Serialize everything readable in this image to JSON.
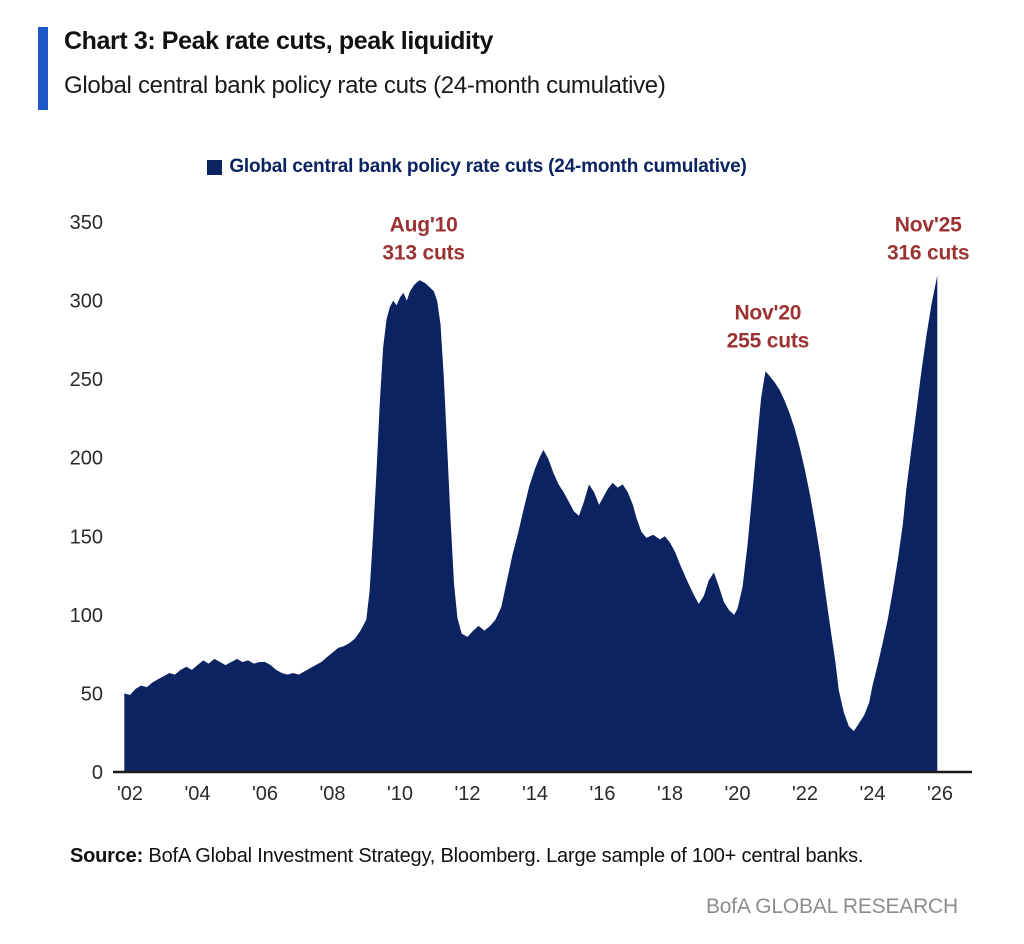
{
  "header": {
    "title": "Chart 3: Peak rate cuts, peak liquidity",
    "subtitle": "Global central bank policy rate cuts (24-month cumulative)"
  },
  "legend": {
    "label": "Global central bank policy rate cuts (24-month cumulative)"
  },
  "footer": {
    "source_label": "Source:",
    "source_text": " BofA Global Investment Strategy, Bloomberg. Large sample of 100+ central banks.",
    "brand": "BofA GLOBAL RESEARCH"
  },
  "colors": {
    "accent_blue": "#1d57c8",
    "area_navy": "#0c2362",
    "annotation_red": "#9b3333",
    "axis_black": "#1a1a1a",
    "brand_gray": "#8d8d8d"
  },
  "chart_data": {
    "type": "area",
    "title": "Chart 3: Peak rate cuts, peak liquidity",
    "subtitle": "Global central bank policy rate cuts (24-month cumulative)",
    "legend_entries": [
      "Global central bank policy rate cuts (24-month cumulative)"
    ],
    "xlabel": "",
    "ylabel": "",
    "xlim": [
      2001.7,
      2026.5
    ],
    "ylim": [
      0,
      350
    ],
    "grid": false,
    "legend_position": "top-center",
    "yticks": [
      0,
      50,
      100,
      150,
      200,
      250,
      300,
      350
    ],
    "xticks": [
      {
        "x": 2002,
        "label": "'02"
      },
      {
        "x": 2004,
        "label": "'04"
      },
      {
        "x": 2006,
        "label": "'06"
      },
      {
        "x": 2008,
        "label": "'08"
      },
      {
        "x": 2010,
        "label": "'10"
      },
      {
        "x": 2012,
        "label": "'12"
      },
      {
        "x": 2014,
        "label": "'14"
      },
      {
        "x": 2016,
        "label": "'16"
      },
      {
        "x": 2018,
        "label": "'18"
      },
      {
        "x": 2020,
        "label": "'20"
      },
      {
        "x": 2022,
        "label": "'22"
      },
      {
        "x": 2024,
        "label": "'24"
      },
      {
        "x": 2026,
        "label": "'26"
      }
    ],
    "annotations": [
      {
        "x": 2010.7,
        "y": 349,
        "lines": [
          "Aug'10",
          "313 cuts"
        ]
      },
      {
        "x": 2020.9,
        "y": 293,
        "lines": [
          "Nov'20",
          "255 cuts"
        ]
      },
      {
        "x": 2025.65,
        "y": 349,
        "lines": [
          "Nov'25",
          "316 cuts"
        ]
      }
    ],
    "series": [
      {
        "name": "Global central bank policy rate cuts (24-month cumulative)",
        "points": [
          [
            2001.83,
            50
          ],
          [
            2002.0,
            49
          ],
          [
            2002.17,
            53
          ],
          [
            2002.33,
            55
          ],
          [
            2002.5,
            54
          ],
          [
            2002.67,
            57
          ],
          [
            2002.83,
            59
          ],
          [
            2003.0,
            61
          ],
          [
            2003.17,
            63
          ],
          [
            2003.33,
            62
          ],
          [
            2003.5,
            65
          ],
          [
            2003.67,
            67
          ],
          [
            2003.83,
            65
          ],
          [
            2004.0,
            68
          ],
          [
            2004.17,
            71
          ],
          [
            2004.33,
            69
          ],
          [
            2004.5,
            72
          ],
          [
            2004.67,
            70
          ],
          [
            2004.83,
            68
          ],
          [
            2005.0,
            70
          ],
          [
            2005.17,
            72
          ],
          [
            2005.33,
            70
          ],
          [
            2005.5,
            71
          ],
          [
            2005.67,
            69
          ],
          [
            2005.83,
            70
          ],
          [
            2006.0,
            70
          ],
          [
            2006.17,
            68
          ],
          [
            2006.33,
            65
          ],
          [
            2006.5,
            63
          ],
          [
            2006.67,
            62
          ],
          [
            2006.83,
            63
          ],
          [
            2007.0,
            62
          ],
          [
            2007.17,
            64
          ],
          [
            2007.33,
            66
          ],
          [
            2007.5,
            68
          ],
          [
            2007.67,
            70
          ],
          [
            2007.83,
            73
          ],
          [
            2008.0,
            76
          ],
          [
            2008.17,
            79
          ],
          [
            2008.33,
            80
          ],
          [
            2008.5,
            82
          ],
          [
            2008.67,
            85
          ],
          [
            2008.83,
            90
          ],
          [
            2009.0,
            97
          ],
          [
            2009.1,
            115
          ],
          [
            2009.2,
            150
          ],
          [
            2009.3,
            190
          ],
          [
            2009.4,
            235
          ],
          [
            2009.5,
            270
          ],
          [
            2009.6,
            288
          ],
          [
            2009.7,
            296
          ],
          [
            2009.8,
            300
          ],
          [
            2009.9,
            297
          ],
          [
            2010.0,
            302
          ],
          [
            2010.1,
            305
          ],
          [
            2010.2,
            300
          ],
          [
            2010.3,
            306
          ],
          [
            2010.42,
            310
          ],
          [
            2010.58,
            313
          ],
          [
            2010.75,
            311
          ],
          [
            2010.9,
            308
          ],
          [
            2011.0,
            306
          ],
          [
            2011.1,
            300
          ],
          [
            2011.2,
            285
          ],
          [
            2011.3,
            250
          ],
          [
            2011.4,
            205
          ],
          [
            2011.5,
            160
          ],
          [
            2011.6,
            120
          ],
          [
            2011.7,
            98
          ],
          [
            2011.83,
            88
          ],
          [
            2012.0,
            86
          ],
          [
            2012.17,
            90
          ],
          [
            2012.33,
            93
          ],
          [
            2012.5,
            90
          ],
          [
            2012.67,
            93
          ],
          [
            2012.83,
            97
          ],
          [
            2013.0,
            105
          ],
          [
            2013.17,
            122
          ],
          [
            2013.33,
            138
          ],
          [
            2013.5,
            152
          ],
          [
            2013.67,
            168
          ],
          [
            2013.83,
            182
          ],
          [
            2014.0,
            193
          ],
          [
            2014.13,
            200
          ],
          [
            2014.25,
            205
          ],
          [
            2014.4,
            199
          ],
          [
            2014.55,
            190
          ],
          [
            2014.7,
            183
          ],
          [
            2014.85,
            178
          ],
          [
            2015.0,
            172
          ],
          [
            2015.15,
            166
          ],
          [
            2015.3,
            163
          ],
          [
            2015.45,
            172
          ],
          [
            2015.6,
            183
          ],
          [
            2015.75,
            178
          ],
          [
            2015.9,
            170
          ],
          [
            2016.0,
            174
          ],
          [
            2016.15,
            180
          ],
          [
            2016.3,
            184
          ],
          [
            2016.45,
            181
          ],
          [
            2016.6,
            183
          ],
          [
            2016.75,
            178
          ],
          [
            2016.9,
            170
          ],
          [
            2017.0,
            162
          ],
          [
            2017.15,
            153
          ],
          [
            2017.3,
            149
          ],
          [
            2017.5,
            151
          ],
          [
            2017.7,
            148
          ],
          [
            2017.85,
            150
          ],
          [
            2018.0,
            146
          ],
          [
            2018.15,
            140
          ],
          [
            2018.3,
            132
          ],
          [
            2018.5,
            122
          ],
          [
            2018.7,
            113
          ],
          [
            2018.85,
            107
          ],
          [
            2019.0,
            112
          ],
          [
            2019.15,
            122
          ],
          [
            2019.3,
            127
          ],
          [
            2019.45,
            118
          ],
          [
            2019.6,
            108
          ],
          [
            2019.75,
            103
          ],
          [
            2019.9,
            100
          ],
          [
            2020.0,
            104
          ],
          [
            2020.15,
            118
          ],
          [
            2020.3,
            145
          ],
          [
            2020.45,
            180
          ],
          [
            2020.6,
            215
          ],
          [
            2020.7,
            238
          ],
          [
            2020.83,
            255
          ],
          [
            2020.95,
            252
          ],
          [
            2021.1,
            248
          ],
          [
            2021.25,
            243
          ],
          [
            2021.4,
            236
          ],
          [
            2021.55,
            228
          ],
          [
            2021.7,
            218
          ],
          [
            2021.85,
            206
          ],
          [
            2022.0,
            192
          ],
          [
            2022.15,
            176
          ],
          [
            2022.3,
            158
          ],
          [
            2022.45,
            138
          ],
          [
            2022.6,
            115
          ],
          [
            2022.75,
            92
          ],
          [
            2022.9,
            70
          ],
          [
            2023.0,
            52
          ],
          [
            2023.15,
            38
          ],
          [
            2023.3,
            29
          ],
          [
            2023.45,
            26
          ],
          [
            2023.6,
            31
          ],
          [
            2023.75,
            36
          ],
          [
            2023.9,
            44
          ],
          [
            2024.0,
            55
          ],
          [
            2024.15,
            68
          ],
          [
            2024.3,
            82
          ],
          [
            2024.45,
            97
          ],
          [
            2024.6,
            115
          ],
          [
            2024.75,
            135
          ],
          [
            2024.9,
            158
          ],
          [
            2025.0,
            180
          ],
          [
            2025.15,
            205
          ],
          [
            2025.3,
            230
          ],
          [
            2025.45,
            255
          ],
          [
            2025.6,
            278
          ],
          [
            2025.75,
            298
          ],
          [
            2025.92,
            316
          ]
        ]
      }
    ]
  }
}
